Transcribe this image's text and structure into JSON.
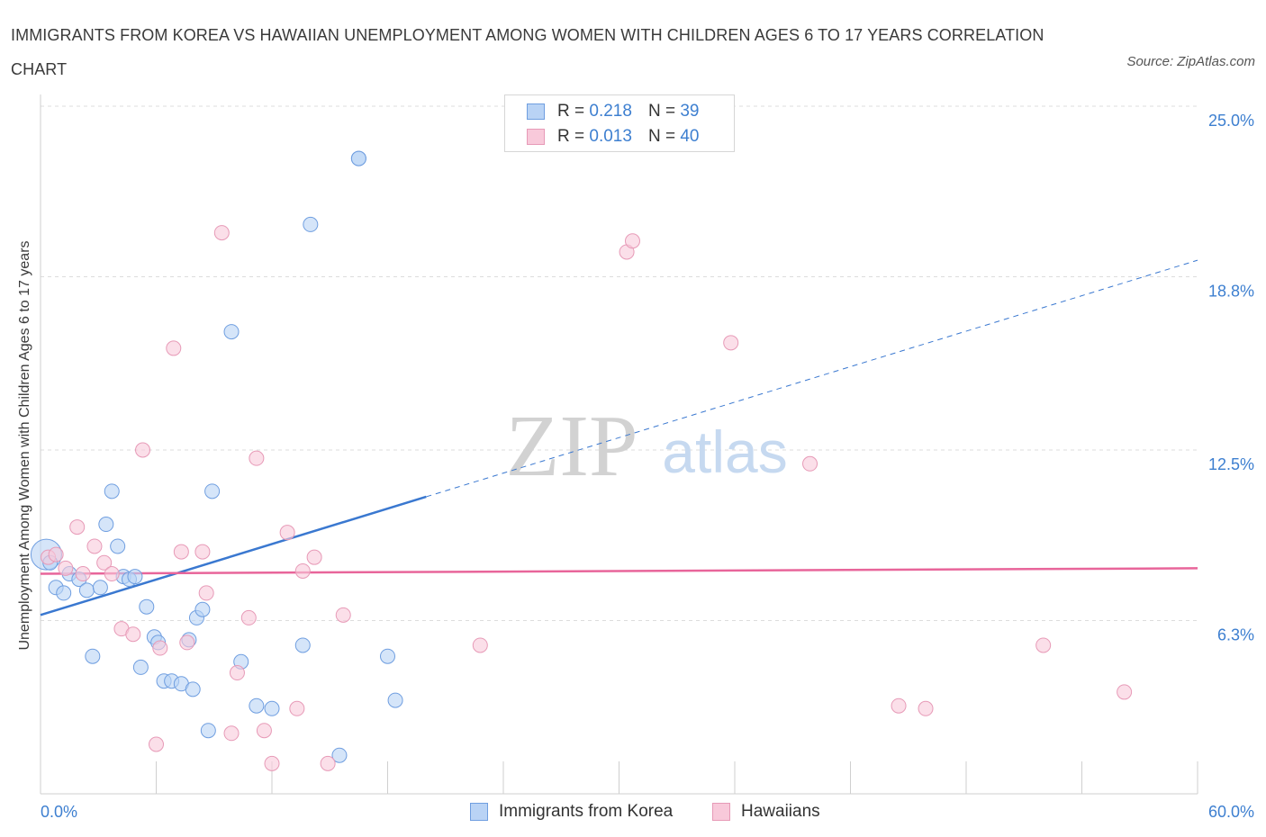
{
  "title": "IMMIGRANTS FROM KOREA VS HAWAIIAN UNEMPLOYMENT AMONG WOMEN WITH CHILDREN AGES 6 TO 17 YEARS CORRELATION CHART",
  "source": "Source: ZipAtlas.com",
  "watermark": {
    "zip": "ZIP",
    "atlas": "atlas"
  },
  "colors": {
    "korea": "#3a78d0",
    "hawaiians": "#e8659a",
    "korea_fill": "#b9d3f5",
    "hawaiians_fill": "#f8c9da",
    "tick_text": "#3d7fd0"
  },
  "legend": {
    "rows": [
      {
        "r_label": "R =",
        "r_value": "0.218",
        "n_label": "N =",
        "n_value": "39"
      },
      {
        "r_label": "R =",
        "r_value": "0.013",
        "n_label": "N =",
        "n_value": "40"
      }
    ]
  },
  "bottom_legend": {
    "korea": "Immigrants from Korea",
    "hawaiians": "Hawaiians"
  },
  "chart_data": {
    "type": "scatter",
    "ylabel": "Unemployment Among Women with Children Ages 6 to 17 years",
    "xlim": [
      0,
      60
    ],
    "ylim": [
      0,
      25.0
    ],
    "x_tick_labels": [
      "0.0%",
      "60.0%"
    ],
    "y_ticks": [
      6.3,
      12.5,
      18.8,
      25.0
    ],
    "y_tick_labels": [
      "6.3%",
      "12.5%",
      "18.8%",
      "25.0%"
    ],
    "grid": true,
    "legend_position": "top-center",
    "series": [
      {
        "name": "Immigrants from Korea",
        "color": "#3a78d0",
        "trend": {
          "x1": 0,
          "y1": 6.5,
          "x2": 60,
          "y2": 19.4,
          "solid_until_x": 20
        },
        "points": [
          [
            0.3,
            8.7
          ],
          [
            0.5,
            8.4
          ],
          [
            0.8,
            7.5
          ],
          [
            1.2,
            7.3
          ],
          [
            1.5,
            8.0
          ],
          [
            2.0,
            7.8
          ],
          [
            2.4,
            7.4
          ],
          [
            3.1,
            7.5
          ],
          [
            3.4,
            9.8
          ],
          [
            3.7,
            11.0
          ],
          [
            4.0,
            9.0
          ],
          [
            4.3,
            7.9
          ],
          [
            4.6,
            7.8
          ],
          [
            4.9,
            7.9
          ],
          [
            2.7,
            5.0
          ],
          [
            5.2,
            4.6
          ],
          [
            5.5,
            6.8
          ],
          [
            5.9,
            5.7
          ],
          [
            6.1,
            5.5
          ],
          [
            6.4,
            4.1
          ],
          [
            6.8,
            4.1
          ],
          [
            7.3,
            4.0
          ],
          [
            7.7,
            5.6
          ],
          [
            7.9,
            3.8
          ],
          [
            8.1,
            6.4
          ],
          [
            8.4,
            6.7
          ],
          [
            8.7,
            2.3
          ],
          [
            8.9,
            11.0
          ],
          [
            9.9,
            16.8
          ],
          [
            10.4,
            4.8
          ],
          [
            11.2,
            3.2
          ],
          [
            12.0,
            3.1
          ],
          [
            13.6,
            5.4
          ],
          [
            14.0,
            20.7
          ],
          [
            15.5,
            1.4
          ],
          [
            16.5,
            23.1
          ],
          [
            16.5,
            23.1
          ],
          [
            18.0,
            5.0
          ],
          [
            18.4,
            3.4
          ]
        ]
      },
      {
        "name": "Hawaiians",
        "color": "#e8659a",
        "trend": {
          "x1": 0,
          "y1": 8.0,
          "x2": 60,
          "y2": 8.2
        },
        "points": [
          [
            0.4,
            8.6
          ],
          [
            0.8,
            8.7
          ],
          [
            1.3,
            8.2
          ],
          [
            1.9,
            9.7
          ],
          [
            2.2,
            8.0
          ],
          [
            2.8,
            9.0
          ],
          [
            3.3,
            8.4
          ],
          [
            3.7,
            8.0
          ],
          [
            4.2,
            6.0
          ],
          [
            4.8,
            5.8
          ],
          [
            5.3,
            12.5
          ],
          [
            6.0,
            1.8
          ],
          [
            6.2,
            5.3
          ],
          [
            6.9,
            16.2
          ],
          [
            7.3,
            8.8
          ],
          [
            7.6,
            5.5
          ],
          [
            8.4,
            8.8
          ],
          [
            8.6,
            7.3
          ],
          [
            9.4,
            20.4
          ],
          [
            9.9,
            2.2
          ],
          [
            10.2,
            4.4
          ],
          [
            10.8,
            6.4
          ],
          [
            11.2,
            12.2
          ],
          [
            11.6,
            2.3
          ],
          [
            12.0,
            1.1
          ],
          [
            12.8,
            9.5
          ],
          [
            13.3,
            3.1
          ],
          [
            13.6,
            8.1
          ],
          [
            14.2,
            8.6
          ],
          [
            14.9,
            1.1
          ],
          [
            15.7,
            6.5
          ],
          [
            22.8,
            5.4
          ],
          [
            30.4,
            19.7
          ],
          [
            30.7,
            20.1
          ],
          [
            35.8,
            16.4
          ],
          [
            39.9,
            12.0
          ],
          [
            44.5,
            3.2
          ],
          [
            45.9,
            3.1
          ],
          [
            52.0,
            5.4
          ],
          [
            56.2,
            3.7
          ]
        ]
      }
    ]
  }
}
